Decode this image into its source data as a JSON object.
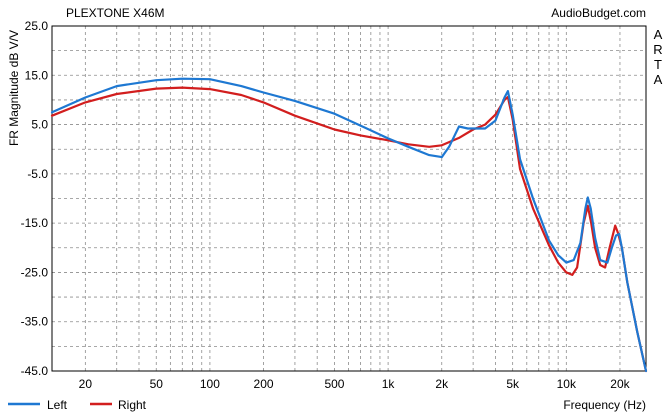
{
  "chart_data": {
    "type": "line",
    "title": "PLEXTONE X46M",
    "source": "AudioBudget.com",
    "side_label": "ARTA",
    "xlabel": "Frequency (Hz)",
    "ylabel": "FR Magnitude dB V/V",
    "x_scale": "log",
    "xlim": [
      13,
      28000
    ],
    "ylim": [
      -45,
      25
    ],
    "grid": true,
    "legend_position": "bottom-left",
    "yticks": [
      {
        "value": 25,
        "label": "25.0"
      },
      {
        "value": 15,
        "label": "15.0"
      },
      {
        "value": 5,
        "label": "5.0"
      },
      {
        "value": -5,
        "label": "-5.0"
      },
      {
        "value": -15,
        "label": "-15.0"
      },
      {
        "value": -25,
        "label": "-25.0"
      },
      {
        "value": -35,
        "label": "-35.0"
      },
      {
        "value": -45,
        "label": "-45.0"
      }
    ],
    "xticks": [
      {
        "value": 20,
        "label": "20"
      },
      {
        "value": 50,
        "label": "50"
      },
      {
        "value": 100,
        "label": "100"
      },
      {
        "value": 200,
        "label": "200"
      },
      {
        "value": 500,
        "label": "500"
      },
      {
        "value": 1000,
        "label": "1k"
      },
      {
        "value": 2000,
        "label": "2k"
      },
      {
        "value": 5000,
        "label": "5k"
      },
      {
        "value": 10000,
        "label": "10k"
      },
      {
        "value": 20000,
        "label": "20k"
      }
    ],
    "series": [
      {
        "name": "Left",
        "color": "#1e78d2",
        "points": [
          [
            13,
            7.5
          ],
          [
            20,
            10.5
          ],
          [
            30,
            12.8
          ],
          [
            50,
            14.0
          ],
          [
            70,
            14.3
          ],
          [
            100,
            14.2
          ],
          [
            150,
            12.8
          ],
          [
            200,
            11.5
          ],
          [
            300,
            9.8
          ],
          [
            500,
            7.2
          ],
          [
            700,
            4.8
          ],
          [
            1000,
            2.2
          ],
          [
            1300,
            0.5
          ],
          [
            1700,
            -1.2
          ],
          [
            2000,
            -1.6
          ],
          [
            2200,
            0.5
          ],
          [
            2500,
            4.6
          ],
          [
            2800,
            4.2
          ],
          [
            3500,
            4.2
          ],
          [
            4000,
            5.8
          ],
          [
            4500,
            10.5
          ],
          [
            4700,
            11.8
          ],
          [
            5000,
            7.0
          ],
          [
            5500,
            -2.0
          ],
          [
            6500,
            -10.0
          ],
          [
            8000,
            -18.5
          ],
          [
            9000,
            -21.5
          ],
          [
            10000,
            -23.0
          ],
          [
            11000,
            -22.5
          ],
          [
            12000,
            -19.0
          ],
          [
            12800,
            -12.0
          ],
          [
            13200,
            -9.8
          ],
          [
            13700,
            -12.0
          ],
          [
            14500,
            -18.0
          ],
          [
            15500,
            -22.5
          ],
          [
            17000,
            -23.0
          ],
          [
            18000,
            -20.0
          ],
          [
            19000,
            -17.5
          ],
          [
            19800,
            -17.2
          ],
          [
            20500,
            -20.0
          ],
          [
            22000,
            -27.0
          ],
          [
            25000,
            -37.0
          ],
          [
            28000,
            -45.0
          ]
        ]
      },
      {
        "name": "Right",
        "color": "#d21e1e",
        "points": [
          [
            13,
            6.8
          ],
          [
            20,
            9.5
          ],
          [
            30,
            11.2
          ],
          [
            50,
            12.3
          ],
          [
            70,
            12.5
          ],
          [
            100,
            12.2
          ],
          [
            150,
            11.0
          ],
          [
            200,
            9.5
          ],
          [
            300,
            6.8
          ],
          [
            500,
            4.0
          ],
          [
            700,
            2.8
          ],
          [
            1000,
            1.8
          ],
          [
            1300,
            1.0
          ],
          [
            1700,
            0.5
          ],
          [
            2000,
            0.8
          ],
          [
            2500,
            2.3
          ],
          [
            3000,
            4.0
          ],
          [
            3500,
            5.0
          ],
          [
            4000,
            7.0
          ],
          [
            4500,
            10.0
          ],
          [
            4700,
            10.6
          ],
          [
            5000,
            6.0
          ],
          [
            5500,
            -4.0
          ],
          [
            6500,
            -12.0
          ],
          [
            8000,
            -19.5
          ],
          [
            9000,
            -23.0
          ],
          [
            10000,
            -25.0
          ],
          [
            10800,
            -25.5
          ],
          [
            11500,
            -24.0
          ],
          [
            12500,
            -15.0
          ],
          [
            13200,
            -11.5
          ],
          [
            13800,
            -15.0
          ],
          [
            14500,
            -20.0
          ],
          [
            15500,
            -23.5
          ],
          [
            16500,
            -24.0
          ],
          [
            17500,
            -20.0
          ],
          [
            18800,
            -15.5
          ],
          [
            19500,
            -17.0
          ],
          [
            20500,
            -20.0
          ],
          [
            22000,
            -27.0
          ],
          [
            25000,
            -37.0
          ],
          [
            28000,
            -45.0
          ]
        ]
      }
    ]
  }
}
